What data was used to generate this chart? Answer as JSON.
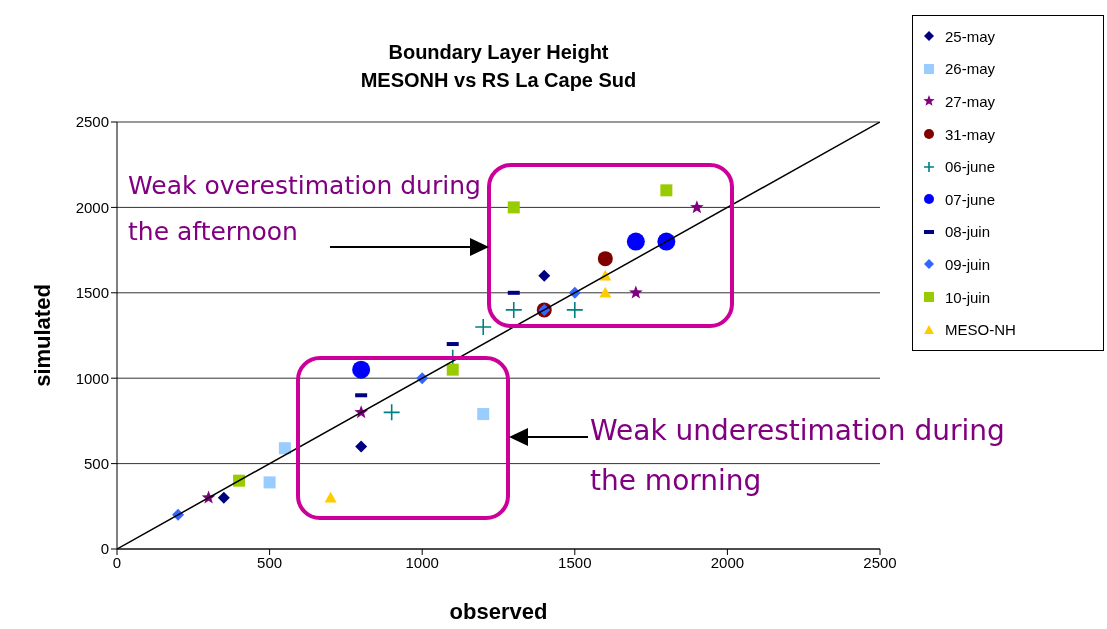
{
  "chart_data": {
    "type": "scatter",
    "title": "Boundary Layer Height",
    "subtitle": "MESONH vs RS La Cape Sud",
    "xlabel": "observed",
    "ylabel": "simulated",
    "xlim": [
      0,
      2500
    ],
    "ylim": [
      0,
      2500
    ],
    "xticks": [
      0,
      500,
      1000,
      1500,
      2000,
      2500
    ],
    "yticks": [
      0,
      500,
      1000,
      1500,
      2000,
      2500
    ],
    "grid": "y",
    "legend": "right",
    "annotations": [
      "Weak overestimation during the afternoon",
      "Weak underestimation during the morning"
    ],
    "series": [
      {
        "name": "25-may",
        "color": "#000080",
        "marker": "diamond",
        "x": [
          350,
          800,
          1400
        ],
        "values": [
          300,
          600,
          1600
        ]
      },
      {
        "name": "26-may",
        "color": "#99ccff",
        "marker": "square",
        "x": [
          500,
          550,
          1200
        ],
        "values": [
          390,
          590,
          790
        ]
      },
      {
        "name": "27-may",
        "color": "#800080",
        "marker": "star",
        "x": [
          300,
          800,
          1700,
          1900
        ],
        "values": [
          300,
          800,
          1500,
          2000
        ]
      },
      {
        "name": "31-may",
        "color": "#800000",
        "marker": "circle",
        "x": [
          1400,
          1600
        ],
        "values": [
          1400,
          1700
        ]
      },
      {
        "name": "06-june",
        "color": "#008080",
        "marker": "cross",
        "x": [
          900,
          1100,
          1200,
          1300,
          1500
        ],
        "values": [
          800,
          1120,
          1300,
          1400,
          1400
        ]
      },
      {
        "name": "07-june",
        "color": "#0000ff",
        "marker": "circle",
        "x": [
          800,
          1700,
          1800
        ],
        "values": [
          1050,
          1800,
          1800
        ]
      },
      {
        "name": "08-juin",
        "color": "#000080",
        "x": [
          800,
          1100,
          1300
        ],
        "values": [
          900,
          1200,
          1500
        ]
      },
      {
        "name": "09-juin",
        "color": "#3366ff",
        "marker": "diamond",
        "x": [
          200,
          1000,
          1400,
          1500
        ],
        "values": [
          200,
          1000,
          1400,
          1500
        ]
      },
      {
        "name": "10-juin",
        "color": "#99cc00",
        "marker": "square",
        "x": [
          400,
          1100,
          1300,
          1800
        ],
        "values": [
          400,
          1050,
          2000,
          2100
        ]
      },
      {
        "name": "MESO-NH",
        "color": "#ffcc00",
        "marker": "triangle",
        "x": [
          700,
          1600,
          1600
        ],
        "values": [
          300,
          1500,
          1600
        ]
      },
      {
        "type": "line",
        "color": "#000000",
        "marker": "none",
        "x": [
          0,
          2500
        ],
        "values": [
          0,
          2500
        ]
      }
    ]
  }
}
